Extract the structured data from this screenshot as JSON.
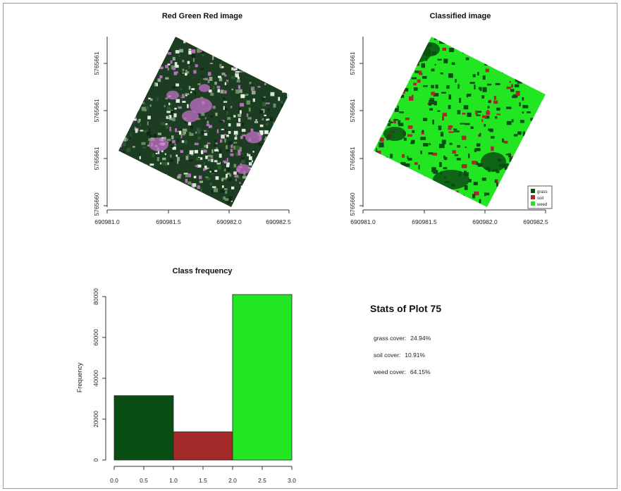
{
  "panels": {
    "rgb_title": "Red Green Red image",
    "classified_title": "Classified image",
    "map_x_ticks": [
      "690981.0",
      "690981.5",
      "690982.0",
      "690982.5"
    ],
    "map_y_ticks": [
      "5765660",
      "5765661",
      "5765661",
      "5765661"
    ],
    "legend": [
      {
        "label": "grass",
        "color": "#0a4d14"
      },
      {
        "label": "soil",
        "color": "#a52a2a"
      },
      {
        "label": "weed",
        "color": "#22e622"
      }
    ]
  },
  "stats": {
    "title": "Stats of Plot 75",
    "rows": [
      {
        "label": "grass cover:",
        "value": "24.94%"
      },
      {
        "label": "soil cover:",
        "value": "10.91%"
      },
      {
        "label": "weed cover:",
        "value": "64.15%"
      }
    ]
  },
  "chart_data": {
    "type": "bar",
    "title": "Class frequency",
    "xlabel": "",
    "ylabel": "Frequency",
    "xlim": [
      0,
      3
    ],
    "ylim": [
      0,
      80000
    ],
    "x_ticks": [
      "0.0",
      "0.5",
      "1.0",
      "1.5",
      "2.0",
      "2.5",
      "3.0"
    ],
    "y_ticks": [
      "0",
      "20000",
      "40000",
      "60000",
      "80000"
    ],
    "bins": [
      {
        "start": 0,
        "end": 1,
        "value": 31500,
        "color": "#0a4d14"
      },
      {
        "start": 1,
        "end": 2,
        "value": 13800,
        "color": "#a52a2a"
      },
      {
        "start": 2,
        "end": 3,
        "value": 81000,
        "color": "#22e622"
      }
    ]
  }
}
